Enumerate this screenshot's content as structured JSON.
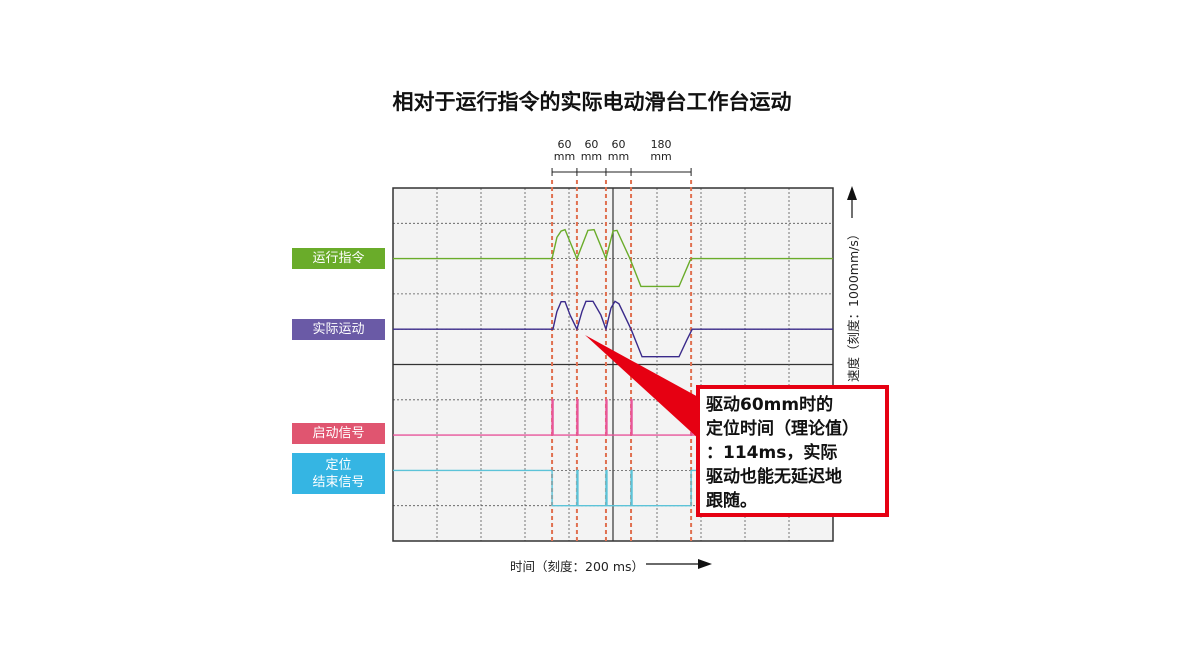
{
  "title": "相对于运行指令的实际电动滑台工作台运动",
  "chart_data": {
    "type": "line",
    "title": "相对于运行指令的实际电动滑台工作台运动",
    "xlabel": "时间（刻度：200 ms）",
    "ylabel": "速度（刻度：1000mm/s）",
    "x_div_ms": 200,
    "y_div_mms": 1000,
    "xlim": [
      0,
      2000
    ],
    "grid": true,
    "segment_labels": [
      {
        "value": "60",
        "unit": "mm"
      },
      {
        "value": "60",
        "unit": "mm"
      },
      {
        "value": "60",
        "unit": "mm"
      },
      {
        "value": "180",
        "unit": "mm"
      }
    ],
    "marker_times_ms": [
      723,
      836,
      968,
      1082,
      1355
    ],
    "series": [
      {
        "name": "运行指令",
        "color": "#6aac2a",
        "kind": "velocity",
        "points": [
          [
            0,
            0
          ],
          [
            723,
            0
          ],
          [
            745,
            600
          ],
          [
            764,
            780
          ],
          [
            782,
            820
          ],
          [
            836,
            0
          ],
          [
            886,
            800
          ],
          [
            914,
            820
          ],
          [
            968,
            0
          ],
          [
            1000,
            780
          ],
          [
            1018,
            800
          ],
          [
            1077,
            0
          ],
          [
            1127,
            -790
          ],
          [
            1300,
            -790
          ],
          [
            1350,
            -60
          ],
          [
            1360,
            0
          ],
          [
            2000,
            0
          ]
        ]
      },
      {
        "name": "实际运动",
        "color": "#3a2a8a",
        "kind": "velocity",
        "points": [
          [
            0,
            0
          ],
          [
            727,
            0
          ],
          [
            745,
            500
          ],
          [
            764,
            780
          ],
          [
            782,
            780
          ],
          [
            805,
            400
          ],
          [
            836,
            0
          ],
          [
            859,
            500
          ],
          [
            877,
            790
          ],
          [
            909,
            790
          ],
          [
            945,
            400
          ],
          [
            968,
            0
          ],
          [
            991,
            600
          ],
          [
            1009,
            790
          ],
          [
            1027,
            720
          ],
          [
            1082,
            0
          ],
          [
            1132,
            -780
          ],
          [
            1300,
            -780
          ],
          [
            1336,
            -300
          ],
          [
            1360,
            0
          ],
          [
            2000,
            0
          ]
        ]
      },
      {
        "name": "启动信号",
        "color": "#e8559a",
        "kind": "pulse",
        "pulses_ms": [
          723,
          836,
          968,
          1082,
          1355
        ]
      },
      {
        "name": "定位结束信号",
        "color": "#5cc3d8",
        "kind": "level",
        "high_until_ms": 723,
        "high_from_ms": 1355,
        "pulses_ms": [
          836,
          968,
          1082
        ]
      }
    ]
  },
  "labels": {
    "command": {
      "text": "运行指令",
      "color": "#6aac2a"
    },
    "actual": {
      "text": "实际运动",
      "color": "#6a5aa6"
    },
    "start": {
      "text": "启动信号",
      "color": "#e05570"
    },
    "done_line1": "定位",
    "done_line2": "结束信号",
    "done_color": "#35b5e3"
  },
  "callout": {
    "text": "驱动60mm时的\n定位时间（理论值）\n：114ms，实际\n驱动也能无延迟地\n跟随。",
    "border_color": "#e60012"
  }
}
